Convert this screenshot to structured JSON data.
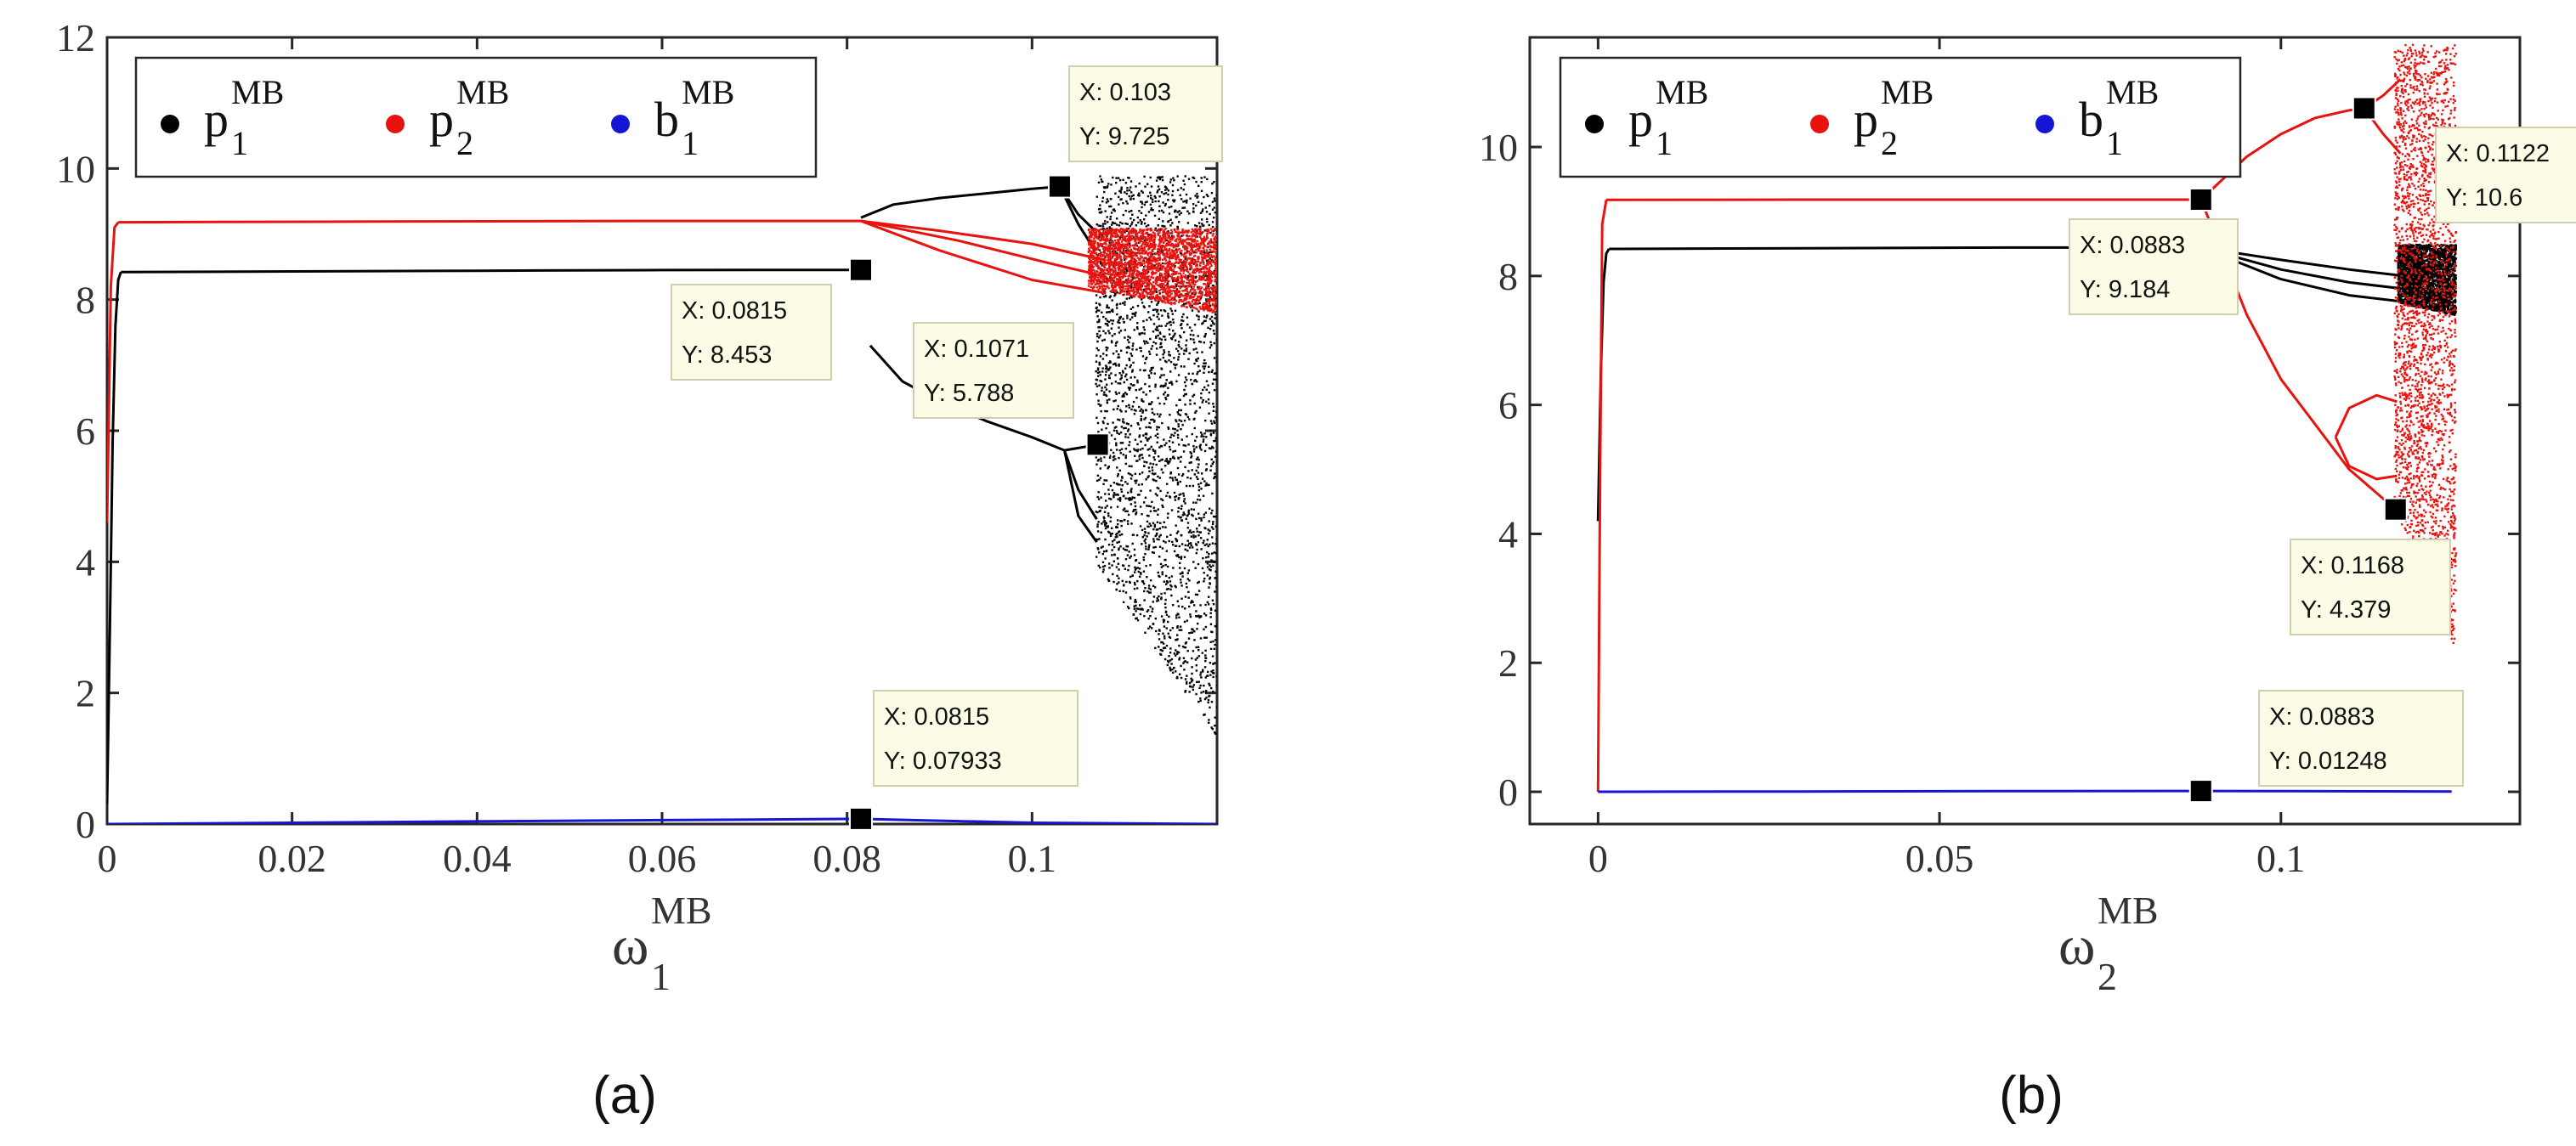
{
  "chart_data": [
    {
      "panel": "(a)",
      "type": "scatter",
      "title": "",
      "xlabel": {
        "base": "ω",
        "sub": "1",
        "sup": "MB"
      },
      "ylabel": "",
      "xlim": [
        0,
        0.12
      ],
      "ylim": [
        0,
        12
      ],
      "xticks": [
        "0",
        "0.02",
        "0.04",
        "0.06",
        "0.08",
        "0.1"
      ],
      "xtick_values": [
        0,
        0.02,
        0.04,
        0.06,
        0.08,
        0.1
      ],
      "yticks": [
        "0",
        "2",
        "4",
        "6",
        "8",
        "10",
        "12"
      ],
      "ytick_values": [
        0,
        2,
        4,
        6,
        8,
        10,
        12
      ],
      "grid": false,
      "legend": {
        "placement": "top-left",
        "entries": [
          {
            "base": "p",
            "sub": "1",
            "sup": "MB",
            "color": "#000000"
          },
          {
            "base": "p",
            "sub": "2",
            "sup": "MB",
            "color": "#e8130f"
          },
          {
            "base": "b",
            "sub": "1",
            "sup": "MB",
            "color": "#1515d6"
          }
        ]
      },
      "series": [
        {
          "color": "#000000",
          "branches": [
            {
              "x": [
                0,
                0.0003,
                0.0006,
                0.0009,
                0.0012,
                0.0015
              ],
              "y": [
                0.3,
                3.0,
                5.8,
                7.6,
                8.3,
                8.42
              ]
            },
            {
              "x": [
                0.0015,
                0.02,
                0.04,
                0.06,
                0.0815
              ],
              "y": [
                8.42,
                8.43,
                8.44,
                8.45,
                8.453
              ]
            },
            {
              "x": [
                0.0815,
                0.085,
                0.09,
                0.095,
                0.1,
                0.103
              ],
              "y": [
                9.25,
                9.45,
                9.55,
                9.62,
                9.69,
                9.725
              ]
            },
            {
              "x": [
                0.0825,
                0.086,
                0.09,
                0.095,
                0.1,
                0.1035,
                0.1071
              ],
              "y": [
                7.3,
                6.75,
                6.45,
                6.15,
                5.9,
                5.7,
                5.788
              ]
            },
            {
              "x": [
                0.1035,
                0.105,
                0.107
              ],
              "y": [
                5.7,
                5.1,
                4.65
              ]
            },
            {
              "x": [
                0.1035,
                0.105,
                0.107
              ],
              "y": [
                5.7,
                4.7,
                4.3
              ]
            },
            {
              "x": [
                0.103,
                0.105,
                0.1068
              ],
              "y": [
                9.725,
                9.3,
                9.05
              ]
            },
            {
              "x": [
                0.103,
                0.105,
                0.1068
              ],
              "y": [
                9.725,
                9.15,
                8.75
              ]
            }
          ],
          "chaotic_band": {
            "x_start": 0.1068,
            "x_end": 0.12,
            "y_bottom_start": 4.0,
            "y_bottom_end": 1.3,
            "y_top": 9.9
          }
        },
        {
          "color": "#e8130f",
          "branches": [
            {
              "x": [
                0,
                0.0004,
                0.0008,
                0.0012
              ],
              "y": [
                4.6,
                8.2,
                9.1,
                9.18
              ]
            },
            {
              "x": [
                0.0012,
                0.03,
                0.06,
                0.0815
              ],
              "y": [
                9.18,
                9.19,
                9.2,
                9.2
              ]
            },
            {
              "x": [
                0.0815,
                0.09,
                0.1,
                0.108
              ],
              "y": [
                9.2,
                9.05,
                8.85,
                8.6
              ]
            },
            {
              "x": [
                0.0815,
                0.09,
                0.1,
                0.108
              ],
              "y": [
                9.2,
                8.75,
                8.3,
                8.1
              ]
            },
            {
              "x": [
                0.0815,
                0.092,
                0.102,
                0.108
              ],
              "y": [
                9.2,
                8.9,
                8.55,
                8.35
              ]
            }
          ],
          "chaotic_band": {
            "x_start": 0.106,
            "x_end": 0.12,
            "y_bottom_start": 8.2,
            "y_bottom_end": 7.8,
            "y_top": 9.1
          }
        },
        {
          "color": "#1515d6",
          "branches": [
            {
              "x": [
                0,
                0.02,
                0.04,
                0.06,
                0.0815,
                0.09,
                0.1,
                0.12
              ],
              "y": [
                0.0,
                0.02,
                0.04,
                0.06,
                0.07933,
                0.05,
                0.02,
                0.0
              ]
            }
          ]
        }
      ],
      "datatips": [
        {
          "x": 0.103,
          "y": 9.725,
          "x_label": "X: 0.103",
          "y_label": "Y: 9.725"
        },
        {
          "x": 0.0815,
          "y": 8.453,
          "x_label": "X: 0.0815",
          "y_label": "Y: 8.453"
        },
        {
          "x": 0.1071,
          "y": 5.788,
          "x_label": "X: 0.1071",
          "y_label": "Y: 5.788"
        },
        {
          "x": 0.0815,
          "y": 0.07933,
          "x_label": "X: 0.0815",
          "y_label": "Y: 0.07933"
        }
      ]
    },
    {
      "panel": "(b)",
      "type": "scatter",
      "title": "",
      "xlabel": {
        "base": "ω",
        "sub": "2",
        "sup": "MB"
      },
      "ylabel": "",
      "xlim": [
        -0.01,
        0.135
      ],
      "ylim": [
        -0.5,
        11.7
      ],
      "xticks": [
        "0",
        "0.05",
        "0.1"
      ],
      "xtick_values": [
        0,
        0.05,
        0.1
      ],
      "yticks": [
        "0",
        "2",
        "4",
        "6",
        "8",
        "10"
      ],
      "ytick_values": [
        0,
        2,
        4,
        6,
        8,
        10
      ],
      "grid": false,
      "legend": {
        "placement": "top-left",
        "entries": [
          {
            "base": "p",
            "sub": "1",
            "sup": "MB",
            "color": "#000000"
          },
          {
            "base": "p",
            "sub": "2",
            "sup": "MB",
            "color": "#e8130f"
          },
          {
            "base": "b",
            "sub": "1",
            "sup": "MB",
            "color": "#1515d6"
          }
        ]
      },
      "series": [
        {
          "color": "#000000",
          "branches": [
            {
              "x": [
                0,
                0.0004,
                0.0008,
                0.0012,
                0.0016
              ],
              "y": [
                4.2,
                6.5,
                7.9,
                8.35,
                8.42
              ]
            },
            {
              "x": [
                0.0016,
                0.03,
                0.06,
                0.0883
              ],
              "y": [
                8.42,
                8.43,
                8.44,
                8.44
              ]
            },
            {
              "x": [
                0.0883,
                0.1,
                0.11,
                0.118
              ],
              "y": [
                8.44,
                8.25,
                8.1,
                8.0
              ]
            },
            {
              "x": [
                0.0883,
                0.1,
                0.11,
                0.118
              ],
              "y": [
                8.44,
                7.95,
                7.7,
                7.6
              ]
            },
            {
              "x": [
                0.0883,
                0.1,
                0.11,
                0.118
              ],
              "y": [
                8.44,
                8.1,
                7.9,
                7.8
              ]
            }
          ],
          "chaotic_band": {
            "x_start": 0.117,
            "x_end": 0.1255,
            "y_bottom_start": 7.6,
            "y_bottom_end": 7.4,
            "y_top": 8.5
          }
        },
        {
          "color": "#e8130f",
          "branches": [
            {
              "x": [
                0,
                0.0003,
                0.0006,
                0.0012
              ],
              "y": [
                0.0,
                5.0,
                8.8,
                9.18
              ]
            },
            {
              "x": [
                0.0012,
                0.03,
                0.06,
                0.0883
              ],
              "y": [
                9.18,
                9.183,
                9.184,
                9.184
              ]
            },
            {
              "x": [
                0.0883,
                0.095,
                0.1,
                0.105,
                0.11,
                0.1122
              ],
              "y": [
                9.184,
                9.85,
                10.2,
                10.45,
                10.57,
                10.6
              ]
            },
            {
              "x": [
                0.0883,
                0.095,
                0.1,
                0.105,
                0.11,
                0.1168
              ],
              "y": [
                9.184,
                7.4,
                6.4,
                5.7,
                5.0,
                4.379
              ]
            },
            {
              "x": [
                0.1122,
                0.115,
                0.1175
              ],
              "y": [
                10.6,
                10.2,
                9.9
              ]
            },
            {
              "x": [
                0.1122,
                0.115,
                0.1175
              ],
              "y": [
                10.6,
                10.8,
                11.05
              ]
            },
            {
              "x": [
                0.108,
                0.11,
                0.114,
                0.117
              ],
              "y": [
                5.5,
                5.95,
                6.15,
                6.05
              ]
            },
            {
              "x": [
                0.108,
                0.11,
                0.114,
                0.117
              ],
              "y": [
                5.5,
                5.05,
                4.85,
                4.9
              ]
            }
          ],
          "chaotic_band": {
            "x_start": 0.1165,
            "x_end": 0.1255,
            "y_bottom_start": 4.4,
            "y_bottom_end": 2.2,
            "y_top": 11.6
          }
        },
        {
          "color": "#1515d6",
          "branches": [
            {
              "x": [
                0,
                0.03,
                0.06,
                0.0883,
                0.1,
                0.125
              ],
              "y": [
                0.0,
                0.005,
                0.01,
                0.01248,
                0.01,
                0.005
              ]
            }
          ]
        }
      ],
      "datatips": [
        {
          "x": 0.1122,
          "y": 10.6,
          "x_label": "X: 0.1122",
          "y_label": "Y: 10.6"
        },
        {
          "x": 0.0883,
          "y": 9.184,
          "x_label": "X: 0.0883",
          "y_label": "Y: 9.184"
        },
        {
          "x": 0.1168,
          "y": 4.379,
          "x_label": "X: 0.1168",
          "y_label": "Y: 4.379"
        },
        {
          "x": 0.0883,
          "y": 0.01248,
          "x_label": "X: 0.0883",
          "y_label": "Y: 0.01248"
        }
      ]
    }
  ]
}
